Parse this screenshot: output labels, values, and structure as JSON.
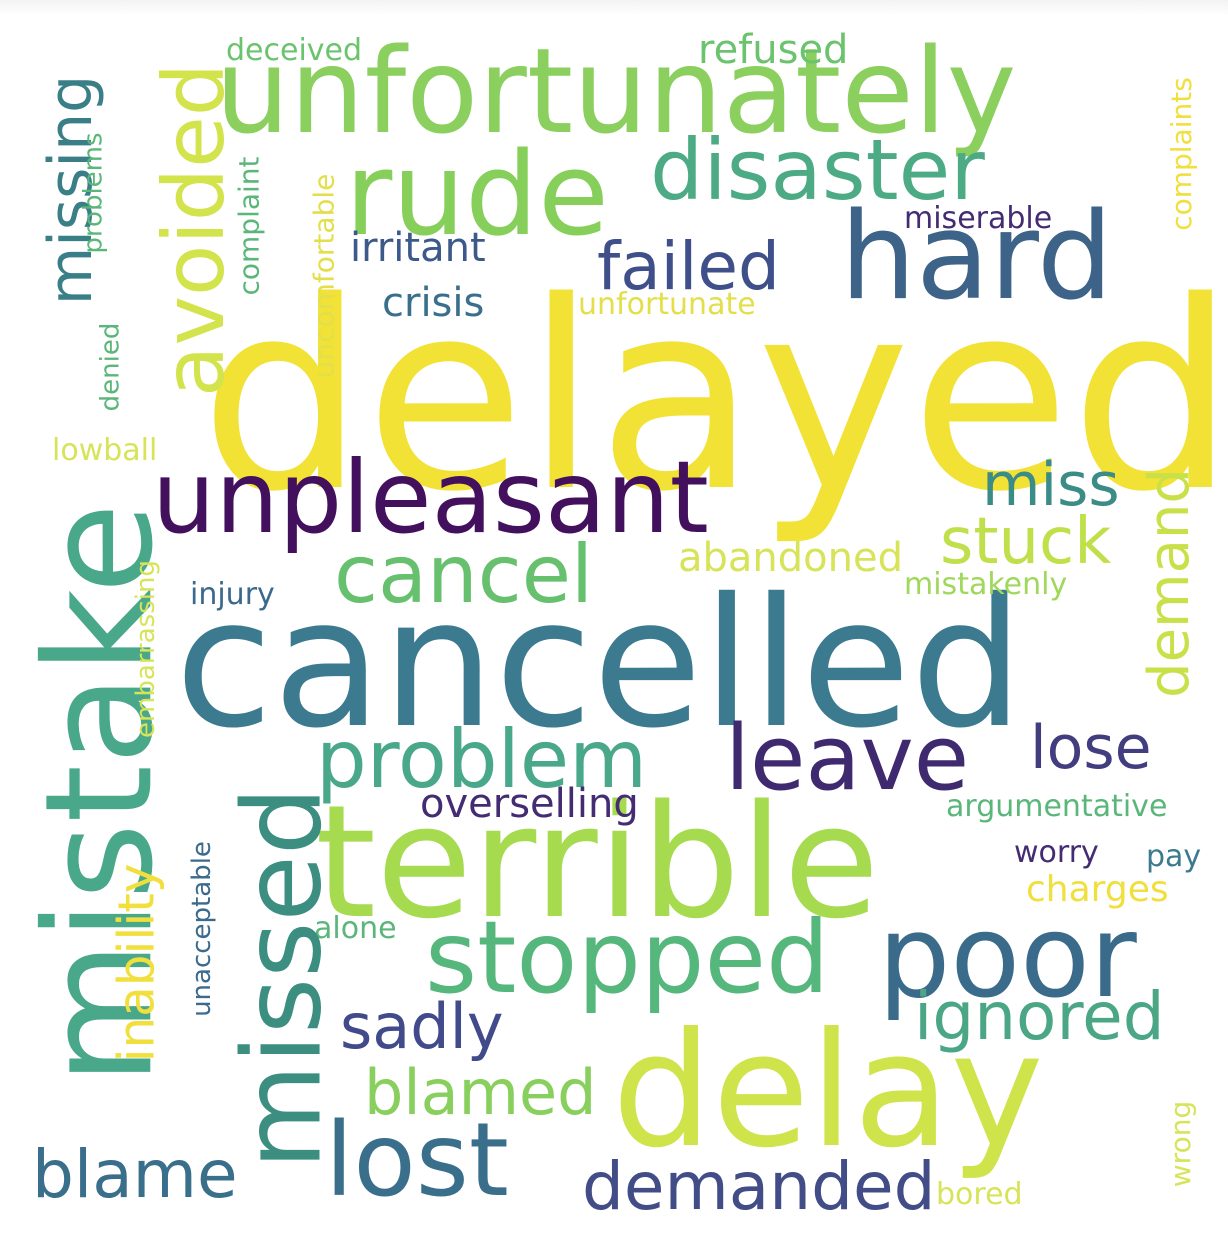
{
  "words": [
    {
      "text": "delayed",
      "color": "#f2e236"
    },
    {
      "text": "cancelled",
      "color": "#3b7a8f"
    },
    {
      "text": "unfortunately",
      "color": "#8bcf5e"
    },
    {
      "text": "mistake",
      "color": "#4aa88a"
    },
    {
      "text": "terrible",
      "color": "#a6da4f"
    },
    {
      "text": "delay",
      "color": "#cfe34a"
    },
    {
      "text": "unpleasant",
      "color": "#43105e"
    },
    {
      "text": "missed",
      "color": "#3c8f80"
    },
    {
      "text": "hard",
      "color": "#3d6488"
    },
    {
      "text": "rude",
      "color": "#86cf5a"
    },
    {
      "text": "disaster",
      "color": "#4cab84"
    },
    {
      "text": "avoided",
      "color": "#d2e34c"
    },
    {
      "text": "missing",
      "color": "#3a7f88"
    },
    {
      "text": "failed",
      "color": "#3f4f8a"
    },
    {
      "text": "poor",
      "color": "#3a6b8a"
    },
    {
      "text": "stopped",
      "color": "#56b77c"
    },
    {
      "text": "leave",
      "color": "#3f2a70"
    },
    {
      "text": "problem",
      "color": "#4aa88a"
    },
    {
      "text": "lost",
      "color": "#3a6f8c"
    },
    {
      "text": "cancel",
      "color": "#66c06e"
    },
    {
      "text": "miss",
      "color": "#3b8b86"
    },
    {
      "text": "stuck",
      "color": "#bfe04b"
    },
    {
      "text": "demand",
      "color": "#c9e048"
    },
    {
      "text": "lose",
      "color": "#423d7e"
    },
    {
      "text": "ignored",
      "color": "#4aa685"
    },
    {
      "text": "sadly",
      "color": "#414a8a"
    },
    {
      "text": "blamed",
      "color": "#88cf5e"
    },
    {
      "text": "blame",
      "color": "#3a6f8c"
    },
    {
      "text": "demanded",
      "color": "#424d88"
    },
    {
      "text": "inability",
      "color": "#f0df3c"
    },
    {
      "text": "irritant",
      "color": "#3b5a8a"
    },
    {
      "text": "crisis",
      "color": "#3a6f8c"
    },
    {
      "text": "overselling",
      "color": "#442c72"
    },
    {
      "text": "abandoned",
      "color": "#d7e45a"
    },
    {
      "text": "refused",
      "color": "#6cc36e"
    },
    {
      "text": "deceived",
      "color": "#6cc36e"
    },
    {
      "text": "complaint",
      "color": "#5bb67a"
    },
    {
      "text": "uncomfortable",
      "color": "#e3df4a"
    },
    {
      "text": "unfortunate",
      "color": "#e3df4a"
    },
    {
      "text": "miserable",
      "color": "#442c72"
    },
    {
      "text": "complaints",
      "color": "#f0df3c"
    },
    {
      "text": "problems",
      "color": "#5bb67a"
    },
    {
      "text": "denied",
      "color": "#5bb67a"
    },
    {
      "text": "lowball",
      "color": "#d7e45a"
    },
    {
      "text": "embarrassing",
      "color": "#d7e45a"
    },
    {
      "text": "injury",
      "color": "#3b6a8c"
    },
    {
      "text": "mistakenly",
      "color": "#9fd85a"
    },
    {
      "text": "argumentative",
      "color": "#5bb67a"
    },
    {
      "text": "worry",
      "color": "#442c72"
    },
    {
      "text": "pay",
      "color": "#3b7a8f"
    },
    {
      "text": "charges",
      "color": "#f0df3c"
    },
    {
      "text": "alone",
      "color": "#5bb67a"
    },
    {
      "text": "unacceptable",
      "color": "#3b6a8c"
    },
    {
      "text": "wrong",
      "color": "#d7e45a"
    },
    {
      "text": "bored",
      "color": "#d7e45a"
    }
  ]
}
